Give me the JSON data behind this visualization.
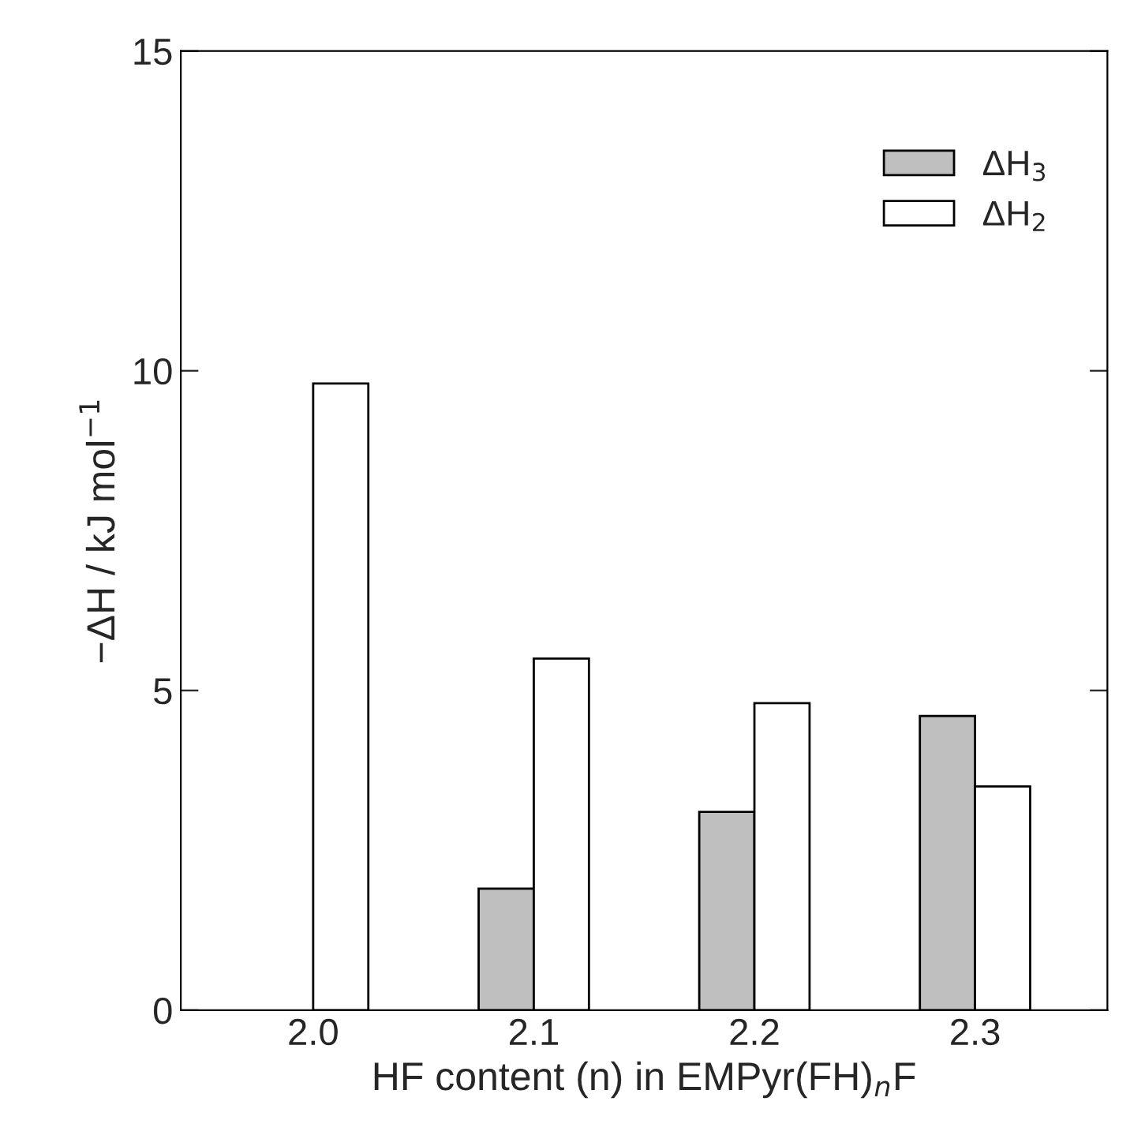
{
  "chart_data": {
    "type": "bar",
    "xlabel": "HF content (n) in EMPyr(FH)$_{n}$F",
    "ylabel": "−ΔH / kJ mol$^{−1}$",
    "categories": [
      "2.0",
      "2.1",
      "2.2",
      "2.3"
    ],
    "series": [
      {
        "name": "ΔH$_{3}$",
        "color": "#bfbfbf",
        "values": [
          null,
          1.9,
          3.1,
          4.6
        ]
      },
      {
        "name": "ΔH$_{2}$",
        "color": "#ffffff",
        "values": [
          9.8,
          5.5,
          4.8,
          3.5
        ]
      }
    ],
    "ylim": [
      0,
      15
    ],
    "yticks": [
      0,
      5,
      10,
      15
    ],
    "grid": false,
    "legend": "top right"
  }
}
